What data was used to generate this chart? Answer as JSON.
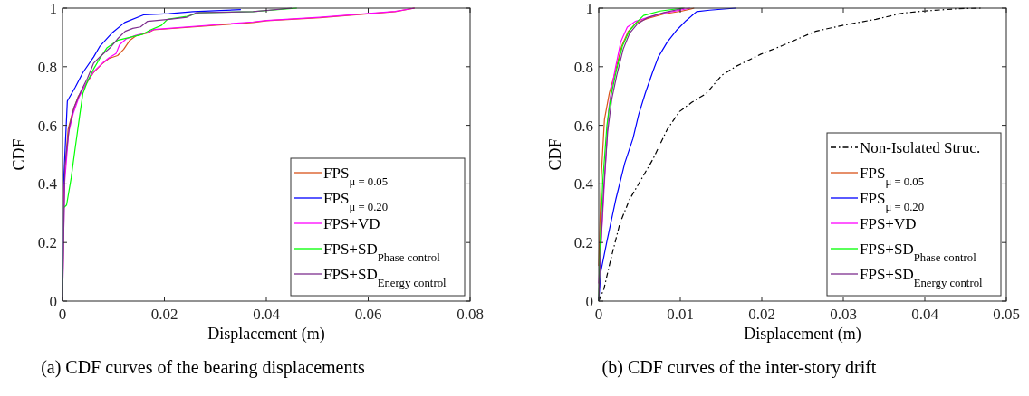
{
  "chart_data": [
    {
      "type": "line",
      "xlabel": "Displacement (m)",
      "ylabel": "CDF",
      "annotations": [
        "(a) CDF curves of the bearing displacements"
      ],
      "xlim": [
        0,
        0.08
      ],
      "ylim": [
        0,
        1
      ],
      "xticks": [
        0,
        0.02,
        0.04,
        0.06,
        0.08
      ],
      "yticks": [
        0,
        0.2,
        0.4,
        0.6,
        0.8,
        1
      ],
      "legend": "bottom right",
      "series": [
        {
          "name": "FPS$_{μ = 0.05}$",
          "color": "#d95319",
          "x": [
            0,
            0.0003,
            0.0011,
            0.002,
            0.0031,
            0.0046,
            0.0061,
            0.0079,
            0.0091,
            0.0108,
            0.012,
            0.0132,
            0.0144,
            0.0167,
            0.0179,
            0.0374,
            0.0401,
            0.0505,
            0.0653,
            0.0691
          ],
          "values": [
            0,
            0.41,
            0.586,
            0.647,
            0.699,
            0.74,
            0.781,
            0.812,
            0.828,
            0.838,
            0.859,
            0.89,
            0.905,
            0.915,
            0.926,
            0.951,
            0.957,
            0.967,
            0.988,
            1
          ]
        },
        {
          "name": "FPS$_{μ = 0.20}$",
          "color": "#0000ff",
          "x": [
            0,
            0.0001,
            0.00095,
            0.0025,
            0.004,
            0.0061,
            0.0073,
            0.0097,
            0.0122,
            0.0159,
            0.0209,
            0.0256,
            0.035
          ],
          "values": [
            0,
            0.36,
            0.683,
            0.73,
            0.78,
            0.833,
            0.869,
            0.915,
            0.951,
            0.977,
            0.981,
            0.988,
            0.995
          ]
        },
        {
          "name": "FPS+VD",
          "color": "#ff00ff",
          "x": [
            0,
            0.0004,
            0.0012,
            0.0021,
            0.0032,
            0.0046,
            0.0061,
            0.0079,
            0.0091,
            0.0105,
            0.0112,
            0.0125,
            0.0144,
            0.0167,
            0.0179,
            0.0374,
            0.0401,
            0.0505,
            0.0653,
            0.0691
          ],
          "values": [
            0,
            0.4,
            0.575,
            0.64,
            0.695,
            0.742,
            0.783,
            0.813,
            0.83,
            0.845,
            0.875,
            0.895,
            0.907,
            0.917,
            0.927,
            0.953,
            0.958,
            0.969,
            0.989,
            1
          ]
        },
        {
          "name": "FPS+SD$_{Phase control}$",
          "color": "#00ff00",
          "x": [
            0,
            0.00018,
            0.0008,
            0.0017,
            0.0025,
            0.0034,
            0.004,
            0.0049,
            0.0061,
            0.0073,
            0.0087,
            0.0108,
            0.0132,
            0.0156,
            0.0173,
            0.0194,
            0.0206,
            0.0244,
            0.0268,
            0.0374,
            0.046
          ],
          "values": [
            0,
            0.318,
            0.328,
            0.42,
            0.524,
            0.637,
            0.709,
            0.75,
            0.792,
            0.828,
            0.864,
            0.89,
            0.9,
            0.91,
            0.926,
            0.941,
            0.962,
            0.972,
            0.984,
            0.988,
            1
          ]
        },
        {
          "name": "FPS+SD$_{Energy control}$",
          "color": "#7e2f8e",
          "x": [
            0,
            0.00047,
            0.00136,
            0.0023,
            0.0037,
            0.0049,
            0.0061,
            0.0076,
            0.0093,
            0.0108,
            0.0123,
            0.0138,
            0.0153,
            0.0167,
            0.0209,
            0.0244,
            0.0262,
            0.0374,
            0.045
          ],
          "values": [
            0,
            0.462,
            0.596,
            0.663,
            0.72,
            0.761,
            0.812,
            0.838,
            0.864,
            0.895,
            0.921,
            0.931,
            0.936,
            0.955,
            0.962,
            0.969,
            0.984,
            0.988,
            1
          ]
        }
      ]
    },
    {
      "type": "line",
      "xlabel": "Displacement (m)",
      "ylabel": "CDF",
      "annotations": [
        "(b) CDF curves of the inter-story drift"
      ],
      "xlim": [
        0,
        0.05
      ],
      "ylim": [
        0,
        1
      ],
      "xticks": [
        0,
        0.01,
        0.02,
        0.03,
        0.04,
        0.05
      ],
      "yticks": [
        0,
        0.2,
        0.4,
        0.6,
        0.8,
        1
      ],
      "legend": "bottom right",
      "series": [
        {
          "name": "Non-Isolated Struc.",
          "color": "#000000",
          "line_style": "dashdot",
          "x": [
            0,
            0.00063,
            0.0014,
            0.0026,
            0.0038,
            0.0051,
            0.0066,
            0.0084,
            0.0099,
            0.0114,
            0.0132,
            0.0151,
            0.0169,
            0.0199,
            0.0225,
            0.0266,
            0.0299,
            0.034,
            0.0373,
            0.0399,
            0.044,
            0.0469
          ],
          "values": [
            0,
            0.041,
            0.134,
            0.266,
            0.348,
            0.41,
            0.482,
            0.586,
            0.647,
            0.678,
            0.709,
            0.771,
            0.802,
            0.843,
            0.872,
            0.921,
            0.941,
            0.962,
            0.983,
            0.99,
            0.998,
            1
          ]
        },
        {
          "name": "FPS$_{μ = 0.05}$",
          "color": "#d95319",
          "x": [
            0,
            0.0001,
            0.0003,
            0.0007,
            0.0013,
            0.002,
            0.0028,
            0.0036,
            0.0046,
            0.006,
            0.008,
            0.0102,
            0.0117
          ],
          "values": [
            0.12,
            0.22,
            0.42,
            0.62,
            0.71,
            0.78,
            0.87,
            0.92,
            0.95,
            0.965,
            0.98,
            0.99,
            1
          ]
        },
        {
          "name": "FPS$_{μ = 0.20}$",
          "color": "#0000ff",
          "x": [
            0,
            0.00026,
            0.001,
            0.0021,
            0.0032,
            0.0042,
            0.0049,
            0.0057,
            0.0066,
            0.0073,
            0.0084,
            0.0096,
            0.0107,
            0.012,
            0.0136,
            0.0168
          ],
          "values": [
            0,
            0.101,
            0.204,
            0.348,
            0.472,
            0.555,
            0.637,
            0.709,
            0.781,
            0.833,
            0.884,
            0.926,
            0.957,
            0.988,
            0.993,
            1
          ]
        },
        {
          "name": "FPS+VD",
          "color": "#ff00ff",
          "x": [
            0,
            0.0012,
            0.0015,
            0.002,
            0.0027,
            0.0035,
            0.0045,
            0.006,
            0.008,
            0.01,
            0.0112
          ],
          "values": [
            0.06,
            0.65,
            0.71,
            0.79,
            0.885,
            0.935,
            0.955,
            0.968,
            0.983,
            0.993,
            1
          ]
        },
        {
          "name": "FPS+SD$_{Phase control}$",
          "color": "#00ff00",
          "x": [
            0,
            0.0002,
            0.0005,
            0.001,
            0.0015,
            0.0021,
            0.0029,
            0.0037,
            0.0046,
            0.0055,
            0.0075,
            0.0103
          ],
          "values": [
            0,
            0.22,
            0.41,
            0.6,
            0.7,
            0.78,
            0.87,
            0.92,
            0.95,
            0.975,
            0.99,
            1
          ]
        },
        {
          "name": "FPS+SD$_{Energy control}$",
          "color": "#7e2f8e",
          "x": [
            0,
            0.0002,
            0.0006,
            0.0011,
            0.0016,
            0.0022,
            0.003,
            0.0038,
            0.0047,
            0.006,
            0.008,
            0.0105
          ],
          "values": [
            0,
            0.15,
            0.38,
            0.58,
            0.69,
            0.77,
            0.86,
            0.915,
            0.945,
            0.968,
            0.985,
            1
          ]
        }
      ]
    }
  ]
}
